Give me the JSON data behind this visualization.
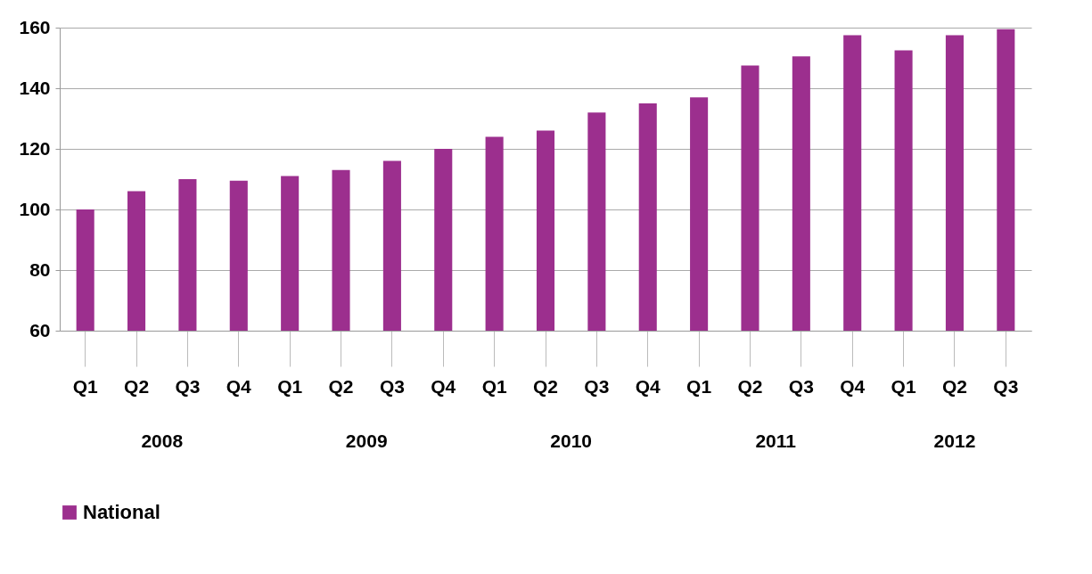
{
  "chart_data": {
    "type": "bar",
    "categories": [
      "Q1",
      "Q2",
      "Q3",
      "Q4",
      "Q1",
      "Q2",
      "Q3",
      "Q4",
      "Q1",
      "Q2",
      "Q3",
      "Q4",
      "Q1",
      "Q2",
      "Q3",
      "Q4",
      "Q1",
      "Q2",
      "Q3"
    ],
    "series": [
      {
        "name": "National",
        "color": "#9c2f8e",
        "values": [
          100,
          106,
          110,
          109.5,
          111,
          113,
          116,
          120,
          124,
          126,
          132,
          135,
          137,
          147.5,
          150.5,
          157.5,
          152.5,
          157.5,
          159.5
        ]
      }
    ],
    "annotations": [
      "2008",
      "2009",
      "2010",
      "2011",
      "2012"
    ],
    "ylim": [
      60,
      160
    ],
    "yticks": [
      60,
      80,
      100,
      120,
      140,
      160
    ],
    "grid": "y",
    "legend": "bottom"
  }
}
